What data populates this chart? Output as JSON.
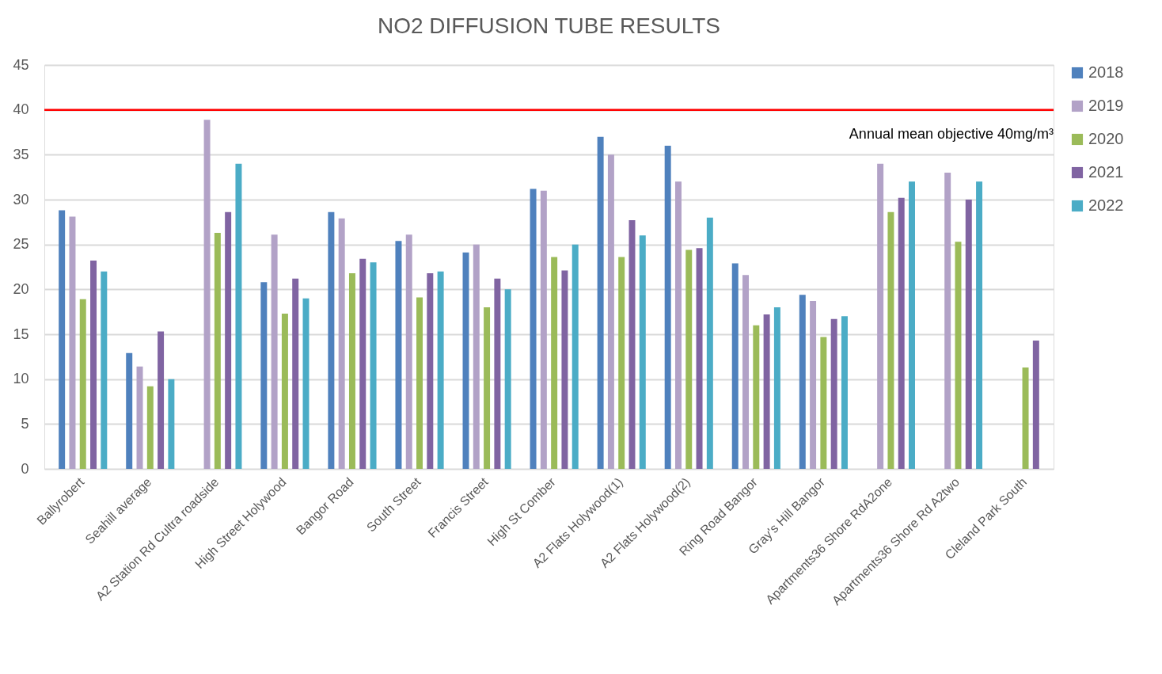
{
  "chart_data": {
    "type": "bar",
    "title": "NO2 DIFFUSION TUBE RESULTS",
    "categories": [
      "Ballyrobert",
      "Seahill average",
      "A2 Station Rd Cultra roadside",
      "High Street Holywood",
      "Bangor Road",
      "South Street",
      "Francis Street",
      "High St Comber",
      "A2 Flats Holywood(1)",
      "A2 Flats Holywood(2)",
      "Ring Road Bangor",
      "Gray's Hill Bangor",
      "Apartments36 Shore RdA2one",
      "Apartments36 Shore Rd A2two",
      "Cleland Park South"
    ],
    "series": [
      {
        "name": "2018",
        "color": "#4f81bd",
        "values": [
          28.8,
          12.9,
          null,
          20.8,
          28.6,
          25.4,
          24.1,
          31.2,
          37,
          36,
          22.9,
          19.4,
          null,
          null,
          null
        ]
      },
      {
        "name": "2019",
        "color": "#b2a2c7",
        "values": [
          28.1,
          11.4,
          38.9,
          26.1,
          27.9,
          26.1,
          25,
          31,
          35,
          32,
          21.6,
          18.7,
          34,
          33,
          null
        ]
      },
      {
        "name": "2020",
        "color": "#9bbb59",
        "values": [
          18.9,
          9.2,
          26.3,
          17.3,
          21.8,
          19.1,
          18,
          23.6,
          23.6,
          24.4,
          16,
          14.7,
          28.6,
          25.3,
          11.3
        ]
      },
      {
        "name": "2021",
        "color": "#8064a2",
        "values": [
          23.2,
          15.3,
          28.6,
          21.2,
          23.4,
          21.8,
          21.2,
          22.1,
          27.7,
          24.6,
          17.2,
          16.7,
          30.2,
          30,
          14.3
        ]
      },
      {
        "name": "2022",
        "color": "#4bacc6",
        "values": [
          22,
          10,
          34,
          19,
          23,
          22,
          20,
          25,
          26,
          28,
          18,
          17,
          32,
          32,
          null
        ]
      }
    ],
    "ylim": [
      0,
      45
    ],
    "yticks": [
      0,
      5,
      10,
      15,
      20,
      25,
      30,
      35,
      40,
      45
    ],
    "grid": "y",
    "legend": "right",
    "ref_lines": [
      {
        "axis": "y",
        "value": 40,
        "label": "Annual mean objective 40mg/m³",
        "color": "#ff0000",
        "line_style": "solid"
      }
    ]
  }
}
